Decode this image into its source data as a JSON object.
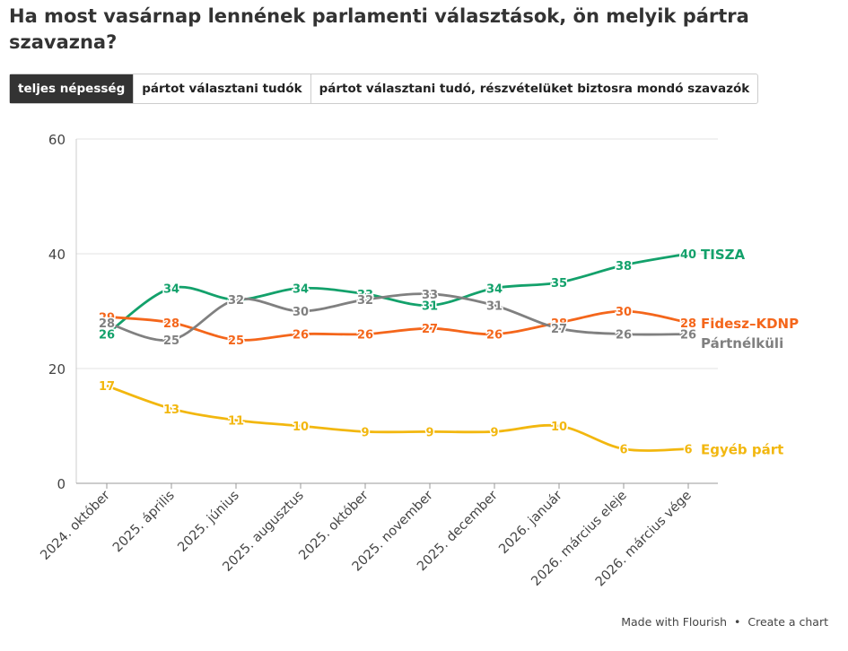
{
  "header": {
    "title": "Ha most vasárnap lennének parlamenti választások, ön melyik pártra szavazna?"
  },
  "tabs": [
    "teljes népesség",
    "pártot választani tudók",
    "pártot választani tudó, részvételüket biztosra mondó szavazók"
  ],
  "footer": {
    "made_with": "Made with Flourish",
    "separator": "•",
    "create": "Create a chart"
  },
  "chart_data": {
    "type": "line",
    "categories": [
      "2024. október",
      "2025. április",
      "2025. június",
      "2025. augusztus",
      "2025. október",
      "2025. november",
      "2025. december",
      "2026. január",
      "2026. március eleje",
      "2026. március vége"
    ],
    "series": [
      {
        "name": "TISZA",
        "color": "#13a16b",
        "values": [
          26,
          34,
          32,
          34,
          33,
          31,
          34,
          35,
          38,
          40
        ]
      },
      {
        "name": "Fidesz–KDNP",
        "color": "#f4661b",
        "values": [
          29,
          28,
          25,
          26,
          26,
          27,
          26,
          28,
          30,
          28
        ]
      },
      {
        "name": "Pártnélküli",
        "color": "#808080",
        "values": [
          28,
          25,
          32,
          30,
          32,
          33,
          31,
          27,
          26,
          26
        ]
      },
      {
        "name": "Egyéb párt",
        "color": "#f2b70f",
        "values": [
          17,
          13,
          11,
          10,
          9,
          9,
          9,
          10,
          6,
          6
        ]
      }
    ],
    "ylim": [
      0,
      60
    ],
    "yticks": [
      0,
      20,
      40,
      60
    ],
    "grid": true
  }
}
